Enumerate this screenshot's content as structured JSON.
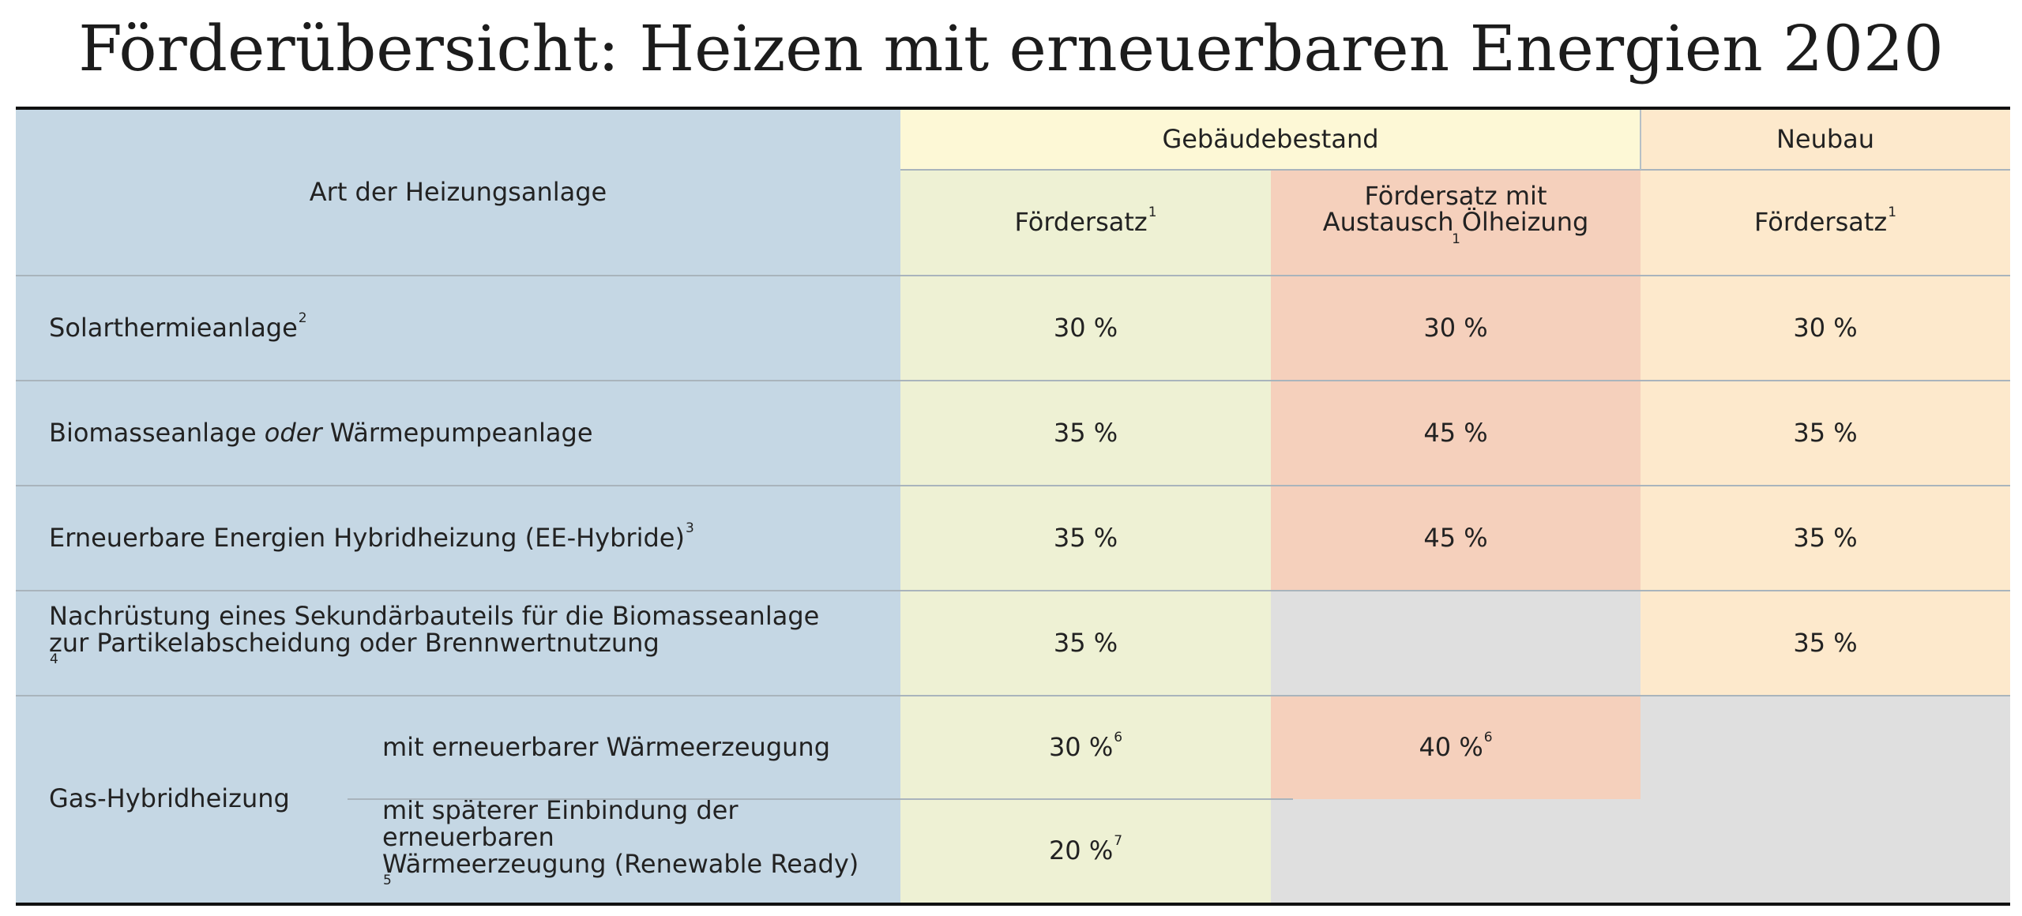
{
  "title": "Förderübersicht: Heizen mit erneuerbaren Energien 2020",
  "colors": {
    "label_column": "#c5d7e4",
    "bestand_header": "#fdf8d6",
    "foerdersatz_bestand": "#eef1d4",
    "oelaustausch": "#f5d0bc",
    "neubau": "#fde9cc",
    "not_applicable": "#dfdfdf",
    "rule": "#111111"
  },
  "header": {
    "art": "Art der Heizungsanlage",
    "gebaeudebestand": "Gebäudebestand",
    "neubau": "Neubau",
    "col_bestand": {
      "text": "Fördersatz",
      "sup": "1"
    },
    "col_oel": {
      "line1": "Fördersatz mit",
      "line2": "Austausch Ölheizung",
      "sup": "1"
    },
    "col_neubau": {
      "text": "Fördersatz",
      "sup": "1"
    }
  },
  "rows": [
    {
      "label": "Solarthermieanlage",
      "sup": "2",
      "bestand": "30 %",
      "oel": "30 %",
      "neubau": "30 %"
    },
    {
      "label_pre": "Biomasseanlage ",
      "label_em": "oder",
      "label_post": " Wärmepumpeanlage",
      "bestand": "35 %",
      "oel": "45 %",
      "neubau": "35 %"
    },
    {
      "label": "Erneuerbare Energien Hybridheizung (EE-Hybride)",
      "sup": "3",
      "bestand": "35 %",
      "oel": "45 %",
      "neubau": "35 %"
    },
    {
      "line1": "Nachrüstung eines Sekundärbauteils für die Biomasseanlage",
      "line2": "zur Partikelabscheidung oder Brennwertnutzung",
      "sup": "4",
      "bestand": "35 %",
      "neubau": "35 %"
    }
  ],
  "gas": {
    "label": "Gas-Hybridheizung",
    "sub1": {
      "label": "mit erneuerbarer Wärmeerzeugung",
      "bestand": "30 %",
      "bestand_sup": "6",
      "oel": "40 %",
      "oel_sup": "6"
    },
    "sub2": {
      "line1": "mit späterer Einbindung der erneuerbaren",
      "line2": "Wärmeerzeugung (Renewable Ready)",
      "sup": "5",
      "bestand": "20 %",
      "bestand_sup": "7"
    }
  }
}
